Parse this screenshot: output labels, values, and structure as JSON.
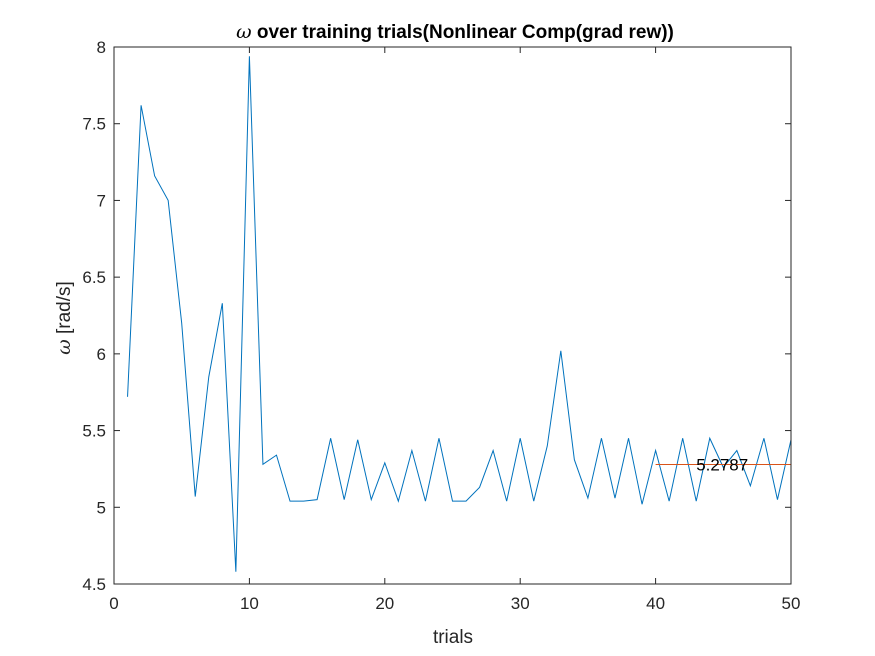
{
  "chart_data": {
    "type": "line",
    "title": "ω over training trials(Nonlinear Comp(grad rew))",
    "title_symbol": "ω",
    "title_text": " over training trials(Nonlinear Comp(grad rew))",
    "xlabel": "trials",
    "ylabel": "ω [rad/s]",
    "ylabel_symbol": "ω",
    "ylabel_text": " [rad/s]",
    "xlim": [
      0,
      50
    ],
    "ylim": [
      4.5,
      8
    ],
    "xticks": [
      "0",
      "10",
      "20",
      "30",
      "40",
      "50"
    ],
    "yticks": [
      "4.5",
      "5",
      "5.5",
      "6",
      "6.5",
      "7",
      "7.5",
      "8"
    ],
    "grid": false,
    "series": [
      {
        "color": "#0072BD",
        "x": [
          1,
          2,
          3,
          4,
          5,
          6,
          7,
          8,
          9,
          10,
          11,
          12,
          13,
          14,
          15,
          16,
          17,
          18,
          19,
          20,
          21,
          22,
          23,
          24,
          25,
          26,
          27,
          28,
          29,
          30,
          31,
          32,
          33,
          34,
          35,
          36,
          37,
          38,
          39,
          40,
          41,
          42,
          43,
          44,
          45,
          46,
          47,
          48,
          49,
          50
        ],
        "y": [
          5.72,
          7.62,
          7.16,
          7.0,
          6.2,
          5.07,
          5.85,
          6.33,
          4.58,
          7.94,
          5.28,
          5.34,
          5.04,
          5.04,
          5.05,
          5.45,
          5.05,
          5.44,
          5.05,
          5.29,
          5.04,
          5.37,
          5.04,
          5.45,
          5.04,
          5.04,
          5.13,
          5.37,
          5.04,
          5.45,
          5.04,
          5.4,
          6.02,
          5.31,
          5.06,
          5.45,
          5.06,
          5.45,
          5.02,
          5.37,
          5.04,
          5.45,
          5.04,
          5.45,
          5.26,
          5.37,
          5.14,
          5.45,
          5.05,
          5.44
        ]
      },
      {
        "color": "#D95319",
        "x": [
          40,
          50
        ],
        "y": [
          5.2787,
          5.2787
        ]
      }
    ],
    "annotations": [
      {
        "text": "5.2787",
        "x": 43,
        "y": 5.2787
      }
    ]
  }
}
